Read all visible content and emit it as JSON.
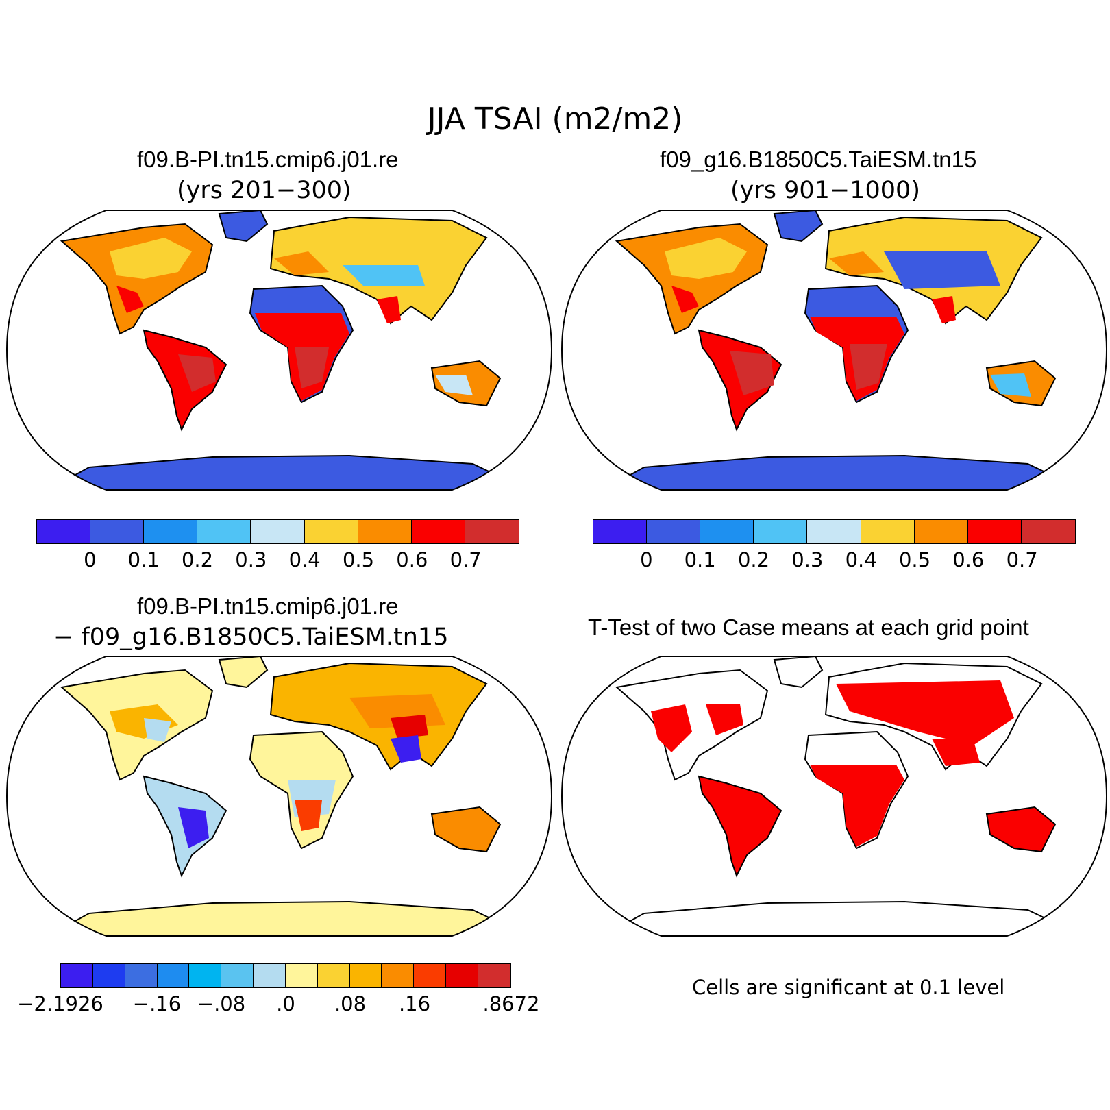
{
  "title": "JJA TSAI (m2/m2)",
  "panels": {
    "top_left": {
      "title": "f09.B-PI.tn15.cmip6.j01.re",
      "subtitle": "(yrs 201−300)"
    },
    "top_right": {
      "title": "f09_g16.B1850C5.TaiESM.tn15",
      "subtitle": "(yrs 901−1000)"
    },
    "bottom_left": {
      "title": "f09.B-PI.tn15.cmip6.j01.re",
      "subtitle": "− f09_g16.B1850C5.TaiESM.tn15"
    },
    "bottom_right": {
      "title": "T-Test of two Case means at each grid point",
      "note": "Cells are significant at 0.1 level"
    }
  },
  "colorbars": {
    "case": {
      "colors": [
        "#3c1ef0",
        "#3c5ae1",
        "#1e90f0",
        "#50c3f5",
        "#c8e6f5",
        "#fad232",
        "#fa8c00",
        "#fa0000",
        "#d22d2d"
      ],
      "labels": [
        "0",
        "0.1",
        "0.2",
        "0.3",
        "0.4",
        "0.5",
        "0.6",
        "0.7"
      ]
    },
    "diff": {
      "colors": [
        "#3c1ef0",
        "#1e3cf0",
        "#3c6ee1",
        "#1e8cf0",
        "#00b4f0",
        "#5ac3f0",
        "#b4dcf0",
        "#fff59b",
        "#fad232",
        "#fab400",
        "#fa8c00",
        "#fa3c00",
        "#e60000",
        "#d22d2d"
      ],
      "labels": [
        "−2.1926",
        "−.16",
        "−.08",
        ".0",
        ".08",
        ".16",
        ".8672"
      ]
    }
  },
  "chart_data": {
    "type": "heatmap",
    "variable": "TSAI",
    "units": "m2/m2",
    "season": "JJA",
    "panels": [
      {
        "name": "f09.B-PI.tn15.cmip6.j01.re (yrs 201−300)",
        "levels": [
          0,
          0.1,
          0.2,
          0.3,
          0.4,
          0.5,
          0.6,
          0.7
        ]
      },
      {
        "name": "f09_g16.B1850C5.TaiESM.tn15 (yrs 901−1000)",
        "levels": [
          0,
          0.1,
          0.2,
          0.3,
          0.4,
          0.5,
          0.6,
          0.7
        ]
      },
      {
        "name": "difference",
        "levels": [
          -2.1926,
          -0.16,
          -0.08,
          0.0,
          0.08,
          0.16,
          0.8672
        ]
      },
      {
        "name": "t-test significance",
        "significance_level": 0.1
      }
    ]
  }
}
